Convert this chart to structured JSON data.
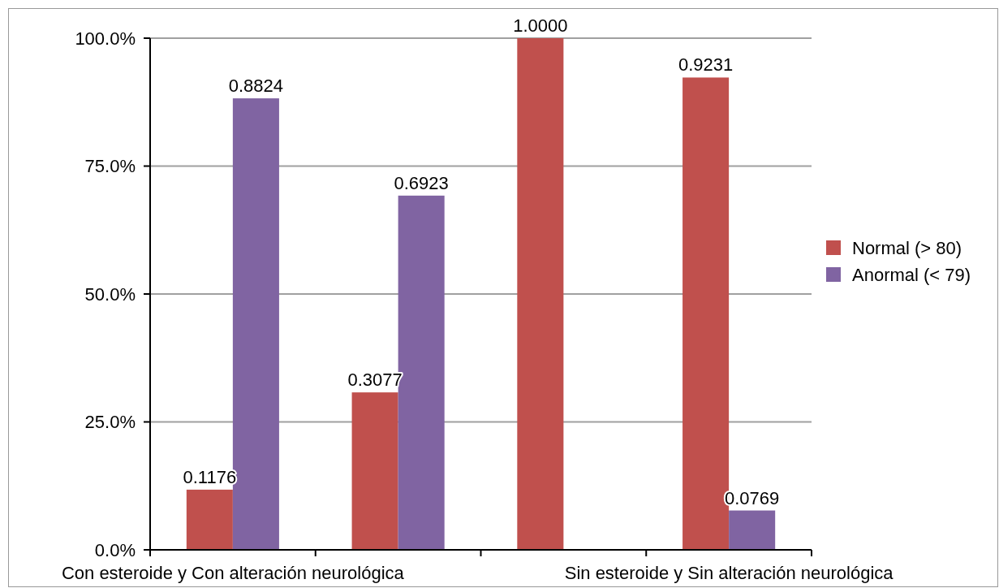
{
  "chart_data": {
    "type": "bar",
    "categories": [
      "Con esteroide y  Con alteración neurológica",
      null,
      null,
      "Sin esteroide y Sin alteración neurológica"
    ],
    "series": [
      {
        "name": "Normal  (> 80)",
        "color": "#c0504d",
        "values": [
          0.1176,
          0.3077,
          1.0,
          0.9231
        ],
        "value_labels": [
          "0.1176",
          "0.3077",
          "1.0000",
          "0.9231"
        ]
      },
      {
        "name": "Anormal (< 79)",
        "color": "#8064a2",
        "values": [
          0.8824,
          0.6923,
          null,
          0.0769
        ],
        "value_labels": [
          "0.8824",
          "0.6923",
          null,
          "0.0769"
        ]
      }
    ],
    "ylim": [
      0,
      1
    ],
    "yticks": [
      {
        "value": 0,
        "label": "0.0%"
      },
      {
        "value": 0.25,
        "label": "25.0%"
      },
      {
        "value": 0.5,
        "label": "50.0%"
      },
      {
        "value": 0.75,
        "label": "75.0%"
      },
      {
        "value": 1,
        "label": "100.0%"
      }
    ],
    "grid": "y",
    "legend": "right"
  }
}
